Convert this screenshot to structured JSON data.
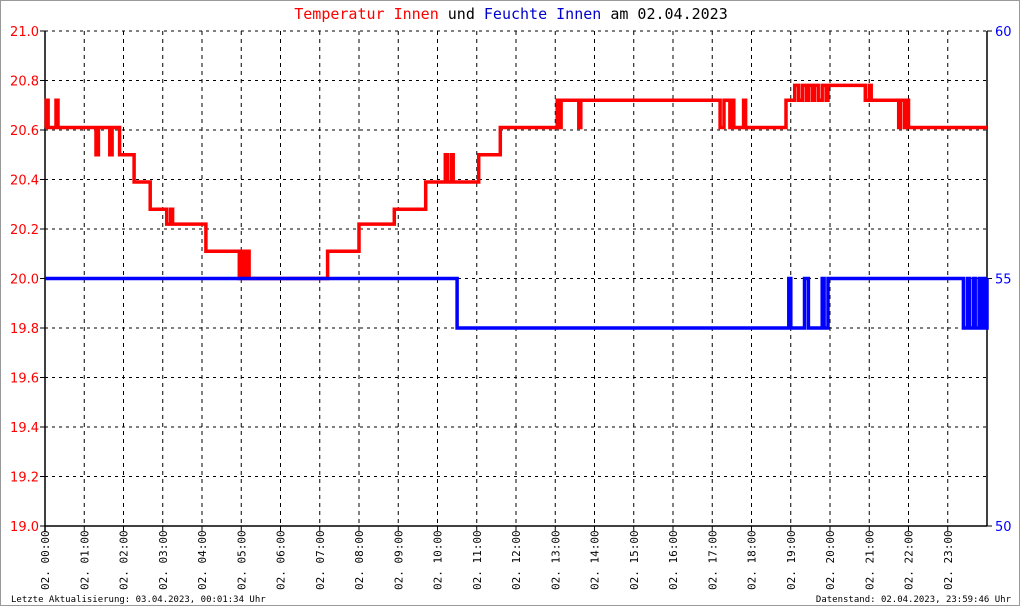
{
  "title": {
    "part1": "Temperatur Innen",
    "part2": " und ",
    "part3": "Feuchte Innen",
    "part4": " am 02.04.2023"
  },
  "footer": {
    "left": "Letzte Aktualisierung: 03.04.2023, 00:01:34 Uhr",
    "right": "Datenstand: 02.04.2023, 23:59:46 Uhr"
  },
  "colors": {
    "temperature": "#ff0000",
    "humidity": "#0000ff"
  },
  "chart_data": {
    "type": "line",
    "title": "Temperatur Innen und Feuchte Innen am 02.04.2023",
    "grid": true,
    "x_ticks": [
      "02. 00:00",
      "02. 01:00",
      "02. 02:00",
      "02. 03:00",
      "02. 04:00",
      "02. 05:00",
      "02. 06:00",
      "02. 07:00",
      "02. 08:00",
      "02. 09:00",
      "02. 10:00",
      "02. 11:00",
      "02. 12:00",
      "02. 13:00",
      "02. 14:00",
      "02. 15:00",
      "02. 16:00",
      "02. 17:00",
      "02. 18:00",
      "02. 19:00",
      "02. 20:00",
      "02. 21:00",
      "02. 22:00",
      "02. 23:00"
    ],
    "xlim_hours": [
      0,
      24
    ],
    "y_left": {
      "lim": [
        19.0,
        21.0
      ],
      "ticks": [
        "19.0",
        "19.2",
        "19.4",
        "19.6",
        "19.8",
        "20.0",
        "20.2",
        "20.4",
        "20.6",
        "20.8",
        "21.0"
      ]
    },
    "y_right": {
      "lim": [
        50,
        60
      ],
      "ticks": [
        "50",
        "55",
        "60"
      ]
    },
    "series": [
      {
        "name": "Temperatur Innen",
        "axis": "left",
        "color": "#ff0000",
        "step": true,
        "points": [
          [
            0,
            20.61
          ],
          [
            0.03,
            20.72
          ],
          [
            0.08,
            20.61
          ],
          [
            0.28,
            20.72
          ],
          [
            0.33,
            20.61
          ],
          [
            1.3,
            20.5
          ],
          [
            1.36,
            20.61
          ],
          [
            1.65,
            20.5
          ],
          [
            1.71,
            20.61
          ],
          [
            1.9,
            20.5
          ],
          [
            2.27,
            20.39
          ],
          [
            2.68,
            20.28
          ],
          [
            3.1,
            20.22
          ],
          [
            3.2,
            20.28
          ],
          [
            3.25,
            20.22
          ],
          [
            4.1,
            20.11
          ],
          [
            4.95,
            20.0
          ],
          [
            5.0,
            20.11
          ],
          [
            5.05,
            20.0
          ],
          [
            5.12,
            20.11
          ],
          [
            5.2,
            20.0
          ],
          [
            7.2,
            20.11
          ],
          [
            8.0,
            20.22
          ],
          [
            8.9,
            20.28
          ],
          [
            9.7,
            20.39
          ],
          [
            10.2,
            20.5
          ],
          [
            10.25,
            20.39
          ],
          [
            10.35,
            20.5
          ],
          [
            10.4,
            20.39
          ],
          [
            11.05,
            20.5
          ],
          [
            11.6,
            20.61
          ],
          [
            13.05,
            20.72
          ],
          [
            13.1,
            20.61
          ],
          [
            13.15,
            20.72
          ],
          [
            13.6,
            20.61
          ],
          [
            13.65,
            20.72
          ],
          [
            17.2,
            20.61
          ],
          [
            17.3,
            20.72
          ],
          [
            17.45,
            20.61
          ],
          [
            17.5,
            20.72
          ],
          [
            17.55,
            20.61
          ],
          [
            17.8,
            20.72
          ],
          [
            17.85,
            20.61
          ],
          [
            18.88,
            20.72
          ],
          [
            19.1,
            20.78
          ],
          [
            19.2,
            20.72
          ],
          [
            19.3,
            20.78
          ],
          [
            19.4,
            20.72
          ],
          [
            19.45,
            20.78
          ],
          [
            19.55,
            20.72
          ],
          [
            19.6,
            20.78
          ],
          [
            19.7,
            20.72
          ],
          [
            19.8,
            20.78
          ],
          [
            19.9,
            20.72
          ],
          [
            19.95,
            20.78
          ],
          [
            20.9,
            20.72
          ],
          [
            21.0,
            20.78
          ],
          [
            21.05,
            20.72
          ],
          [
            21.75,
            20.61
          ],
          [
            21.8,
            20.72
          ],
          [
            21.9,
            20.61
          ],
          [
            21.95,
            20.72
          ],
          [
            22.0,
            20.61
          ],
          [
            24,
            20.61
          ]
        ]
      },
      {
        "name": "Feuchte Innen",
        "axis": "right",
        "color": "#0000ff",
        "step": true,
        "points": [
          [
            0,
            55
          ],
          [
            10.5,
            54
          ],
          [
            18.95,
            55
          ],
          [
            19.0,
            54
          ],
          [
            19.35,
            55
          ],
          [
            19.45,
            54
          ],
          [
            19.8,
            55
          ],
          [
            19.85,
            54
          ],
          [
            19.95,
            55
          ],
          [
            23.4,
            54
          ],
          [
            23.5,
            55
          ],
          [
            23.55,
            54
          ],
          [
            23.65,
            55
          ],
          [
            23.7,
            54
          ],
          [
            23.8,
            55
          ],
          [
            23.85,
            54
          ],
          [
            23.9,
            55
          ],
          [
            23.95,
            54
          ],
          [
            24,
            55
          ]
        ]
      }
    ]
  }
}
